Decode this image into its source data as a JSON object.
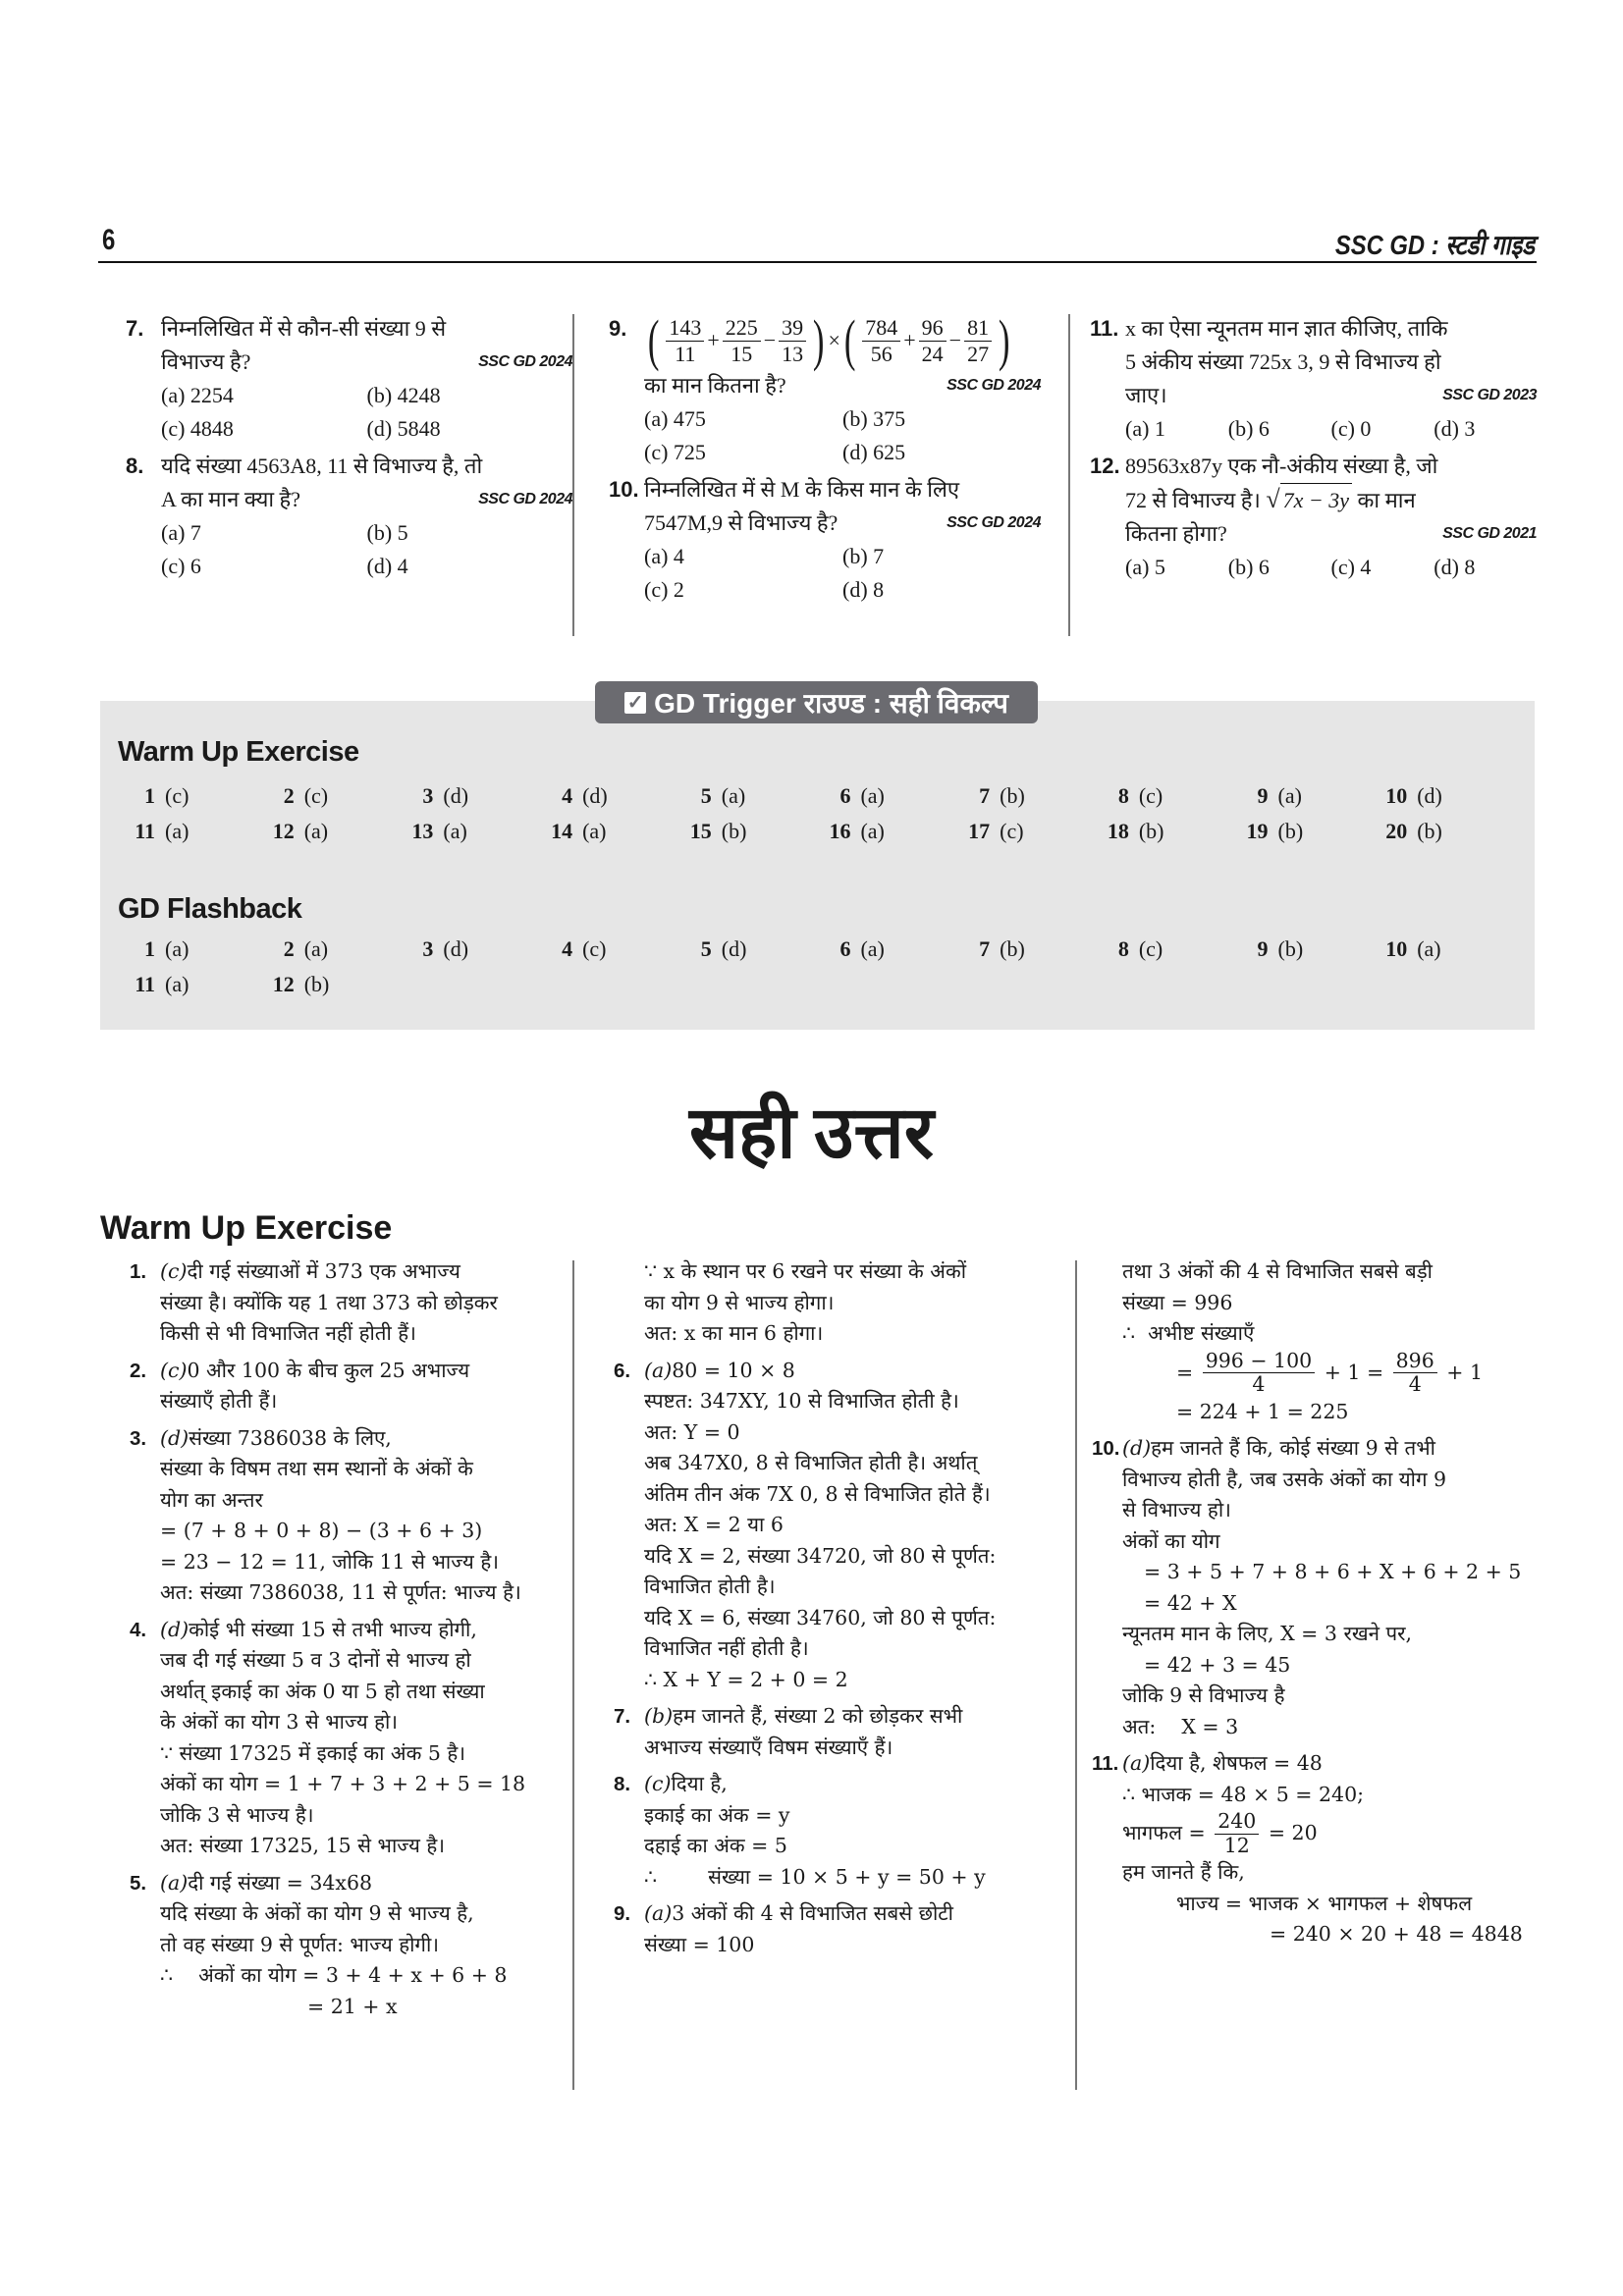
{
  "header": {
    "page_number": "6",
    "running_head": "SSC GD : स्टडी गाइड"
  },
  "questions": [
    [
      {
        "num": "7.",
        "lines": [
          "निम्नलिखित में से कौन-सी संख्या 9 से",
          "विभाज्य है?"
        ],
        "source": "SSC GD 2024",
        "options": [
          "(a) 2254",
          "(b) 4248",
          "(c) 4848",
          "(d) 5848"
        ]
      },
      {
        "num": "8.",
        "lines": [
          "यदि संख्या 4563A8, 11 से विभाज्य है, तो",
          "A का मान क्या है?"
        ],
        "source": "SSC GD 2024",
        "options": [
          "(a) 7",
          "(b) 5",
          "(c) 6",
          "(d) 4"
        ]
      }
    ],
    [
      {
        "num": "9.",
        "lines": [
          {
            "parts": [
              "(",
              {
                "num": "143",
                "den": "11"
              },
              "+",
              {
                "num": "225",
                "den": "15"
              },
              "−",
              {
                "num": "39",
                "den": "13"
              },
              ")",
              "×",
              "(",
              {
                "num": "784",
                "den": "56"
              },
              "+",
              {
                "num": "96",
                "den": "24"
              },
              "−",
              {
                "num": "81",
                "den": "27"
              },
              ")"
            ]
          },
          "का मान कितना है?"
        ],
        "source": "SSC GD 2024",
        "options": [
          "(a) 475",
          "(b) 375",
          "(c) 725",
          "(d) 625"
        ]
      },
      {
        "num": "10.",
        "lines": [
          "निम्नलिखित में से M के किस मान के लिए",
          "7547M,9 से विभाज्य है?"
        ],
        "source": "SSC GD 2024",
        "options": [
          "(a) 4",
          "(b) 7",
          "(c) 2",
          "(d) 8"
        ]
      }
    ],
    [
      {
        "num": "11.",
        "lines": [
          "x का ऐसा न्यूनतम मान ज्ञात कीजिए, ताकि",
          "5 अंकीय संख्या 725x 3, 9 से विभाज्य हो",
          "जाए।"
        ],
        "source": "SSC GD 2023",
        "options": [
          "(a) 1",
          "(b) 6",
          "(c) 0",
          "(d) 3"
        ],
        "four": true
      },
      {
        "num": "12.",
        "lines": [
          "89563x87y एक नौ-अंकीय संख्या है, जो",
          {
            "parts": [
              "72 से विभाज्य है। ",
              {
                "sqrt": "7x − 3y"
              },
              " का मान"
            ]
          },
          "कितना होगा?"
        ],
        "source": "SSC GD 2021",
        "options": [
          "(a) 5",
          "(b) 6",
          "(c) 4",
          "(d) 8"
        ],
        "four": true
      }
    ]
  ],
  "answer_key": {
    "badge": "GD Trigger राउण्ड : सही विकल्प",
    "sections": [
      {
        "title": "Warm Up Exercise",
        "answers": [
          [
            "1",
            "(c)"
          ],
          [
            "2",
            "(c)"
          ],
          [
            "3",
            "(d)"
          ],
          [
            "4",
            "(d)"
          ],
          [
            "5",
            "(a)"
          ],
          [
            "6",
            "(a)"
          ],
          [
            "7",
            "(b)"
          ],
          [
            "8",
            "(c)"
          ],
          [
            "9",
            "(a)"
          ],
          [
            "10",
            "(d)"
          ],
          [
            "11",
            "(a)"
          ],
          [
            "12",
            "(a)"
          ],
          [
            "13",
            "(a)"
          ],
          [
            "14",
            "(a)"
          ],
          [
            "15",
            "(b)"
          ],
          [
            "16",
            "(a)"
          ],
          [
            "17",
            "(c)"
          ],
          [
            "18",
            "(b)"
          ],
          [
            "19",
            "(b)"
          ],
          [
            "20",
            "(b)"
          ]
        ]
      },
      {
        "title": "GD Flashback",
        "answers": [
          [
            "1",
            "(a)"
          ],
          [
            "2",
            "(a)"
          ],
          [
            "3",
            "(d)"
          ],
          [
            "4",
            "(c)"
          ],
          [
            "5",
            "(d)"
          ],
          [
            "6",
            "(a)"
          ],
          [
            "7",
            "(b)"
          ],
          [
            "8",
            "(c)"
          ],
          [
            "9",
            "(b)"
          ],
          [
            "10",
            "(a)"
          ],
          [
            "11",
            "(a)"
          ],
          [
            "12",
            "(b)"
          ]
        ]
      }
    ]
  },
  "solutions": {
    "title": "सही उत्तर",
    "heading": "Warm Up Exercise",
    "columns": [
      [
        {
          "num": "1.",
          "ans": "(c)",
          "lines": [
            "दी गई संख्याओं में 373 एक अभाज्य",
            "संख्या है। क्योंकि यह 1 तथा 373 को छोड़कर",
            "किसी से भी विभाजित नहीं होती हैं।"
          ]
        },
        {
          "num": "2.",
          "ans": "(c)",
          "lines": [
            "0 और 100 के बीच कुल 25 अभाज्य",
            "संख्याएँ होती हैं।"
          ]
        },
        {
          "num": "3.",
          "ans": "(d)",
          "lines": [
            "संख्या 7386038 के लिए,",
            "संख्या के विषम तथा सम स्थानों के अंकों के",
            "योग का अन्तर",
            "= (7 + 8 + 0 + 8) − (3 + 6 + 3)",
            "= 23 − 12 = 11, जोकि 11 से भाज्य है।",
            "अत: संख्या 7386038, 11 से पूर्णत: भाज्य है।"
          ]
        },
        {
          "num": "4.",
          "ans": "(d)",
          "lines": [
            "कोई भी संख्या 15 से तभी भाज्य होगी,",
            "जब दी गई संख्या 5 व 3 दोनों से भाज्य हो",
            "अर्थात् इकाई का अंक 0 या 5 हो तथा संख्या",
            "के अंकों का योग 3 से भाज्य हो।",
            "∵ संख्या 17325 में इकाई का अंक 5 है।",
            "अंकों का योग = 1 + 7 + 3 + 2 + 5 = 18",
            "जोकि 3 से भाज्य है।",
            "अत: संख्या 17325, 15 से भाज्य है।"
          ]
        },
        {
          "num": "5.",
          "ans": "(a)",
          "lines": [
            "दी गई संख्या = 34x68",
            "यदि संख्या के अंकों का योग 9 से भाज्य है,",
            "तो वह संख्या 9 से पूर्णत: भाज्य होगी।",
            "∴    अंकों का योग = 3 + 4 + x + 6 + 8",
            {
              "kind": "eqc",
              "text": "= 21 + x"
            }
          ]
        }
      ],
      [
        {
          "lines": [
            "∵ x के स्थान पर 6 रखने पर संख्या के अंकों",
            "का योग 9 से भाज्य होगा।",
            "अत: x का मान 6 होगा।"
          ]
        },
        {
          "num": "6.",
          "ans": "(a)",
          "lines": [
            "80 = 10 × 8",
            "स्पष्टत: 347XY, 10 से विभाजित होती है।",
            "अत: Y = 0",
            "अब 347X0, 8 से विभाजित होती है। अर्थात्",
            "अंतिम तीन अंक 7X 0, 8 से विभाजित होते हैं।",
            "अत: X = 2 या 6",
            "यदि X = 2, संख्या 34720, जो 80 से पूर्णत:",
            "विभाजित होती है।",
            "यदि X = 6, संख्या 34760, जो 80 से पूर्णत:",
            "विभाजित नहीं होती है।",
            "∴ X + Y = 2 + 0 = 2"
          ]
        },
        {
          "num": "7.",
          "ans": "(b)",
          "lines": [
            "हम जानते हैं, संख्या 2 को छोड़कर सभी",
            "अभाज्य संख्याएँ विषम संख्याएँ हैं।"
          ]
        },
        {
          "num": "8.",
          "ans": "(c)",
          "lines": [
            "दिया है,",
            "इकाई का अंक = y",
            "दहाई का अंक = 5",
            "∴        संख्या = 10 × 5 + y = 50 + y"
          ]
        },
        {
          "num": "9.",
          "ans": "(a)",
          "lines": [
            "3 अंकों की 4 से विभाजित सबसे छोटी",
            "संख्या = 100"
          ]
        }
      ],
      [
        {
          "lines": [
            "तथा 3 अंकों की 4 से विभाजित सबसे बड़ी",
            "संख्या = 996",
            "∴  अभीष्ट संख्याएँ",
            {
              "kind": "eq2",
              "parts": [
                "= ",
                {
                  "num": "996 − 100",
                  "den": "4"
                },
                " + 1 = ",
                {
                  "num": "896",
                  "den": "4"
                },
                " + 1"
              ]
            },
            {
              "kind": "eq2",
              "text": "= 224 + 1 = 225"
            }
          ]
        },
        {
          "num": "10.",
          "ans": "(d)",
          "lines": [
            "हम जानते हैं कि, कोई संख्या 9 से तभी",
            "विभाज्य होती है, जब उसके अंकों का योग 9",
            "से विभाज्य हो।",
            "अंकों का योग",
            {
              "kind": "eq",
              "text": "= 3 + 5 + 7 + 8 + 6 + X + 6 + 2 + 5"
            },
            {
              "kind": "eq",
              "text": "= 42 + X"
            },
            "न्यूनतम मान के लिए, X = 3 रखने पर,",
            {
              "kind": "eq",
              "text": "= 42 + 3 = 45"
            },
            "जोकि 9 से विभाज्य है",
            "अत:    X = 3"
          ]
        },
        {
          "num": "11.",
          "ans": "(a)",
          "lines": [
            "दिया है, शेषफल = 48",
            "∴ भाजक = 48 × 5 = 240;",
            {
              "parts": [
                "भागफल = ",
                {
                  "num": "240",
                  "den": "12"
                },
                " = 20"
              ]
            },
            "हम जानते हैं कि,",
            {
              "kind": "eq2",
              "text": "भाज्य = भाजक × भागफल + शेषफल"
            },
            {
              "kind": "eqc",
              "text": "= 240 × 20 + 48 = 4848"
            }
          ]
        }
      ]
    ]
  }
}
